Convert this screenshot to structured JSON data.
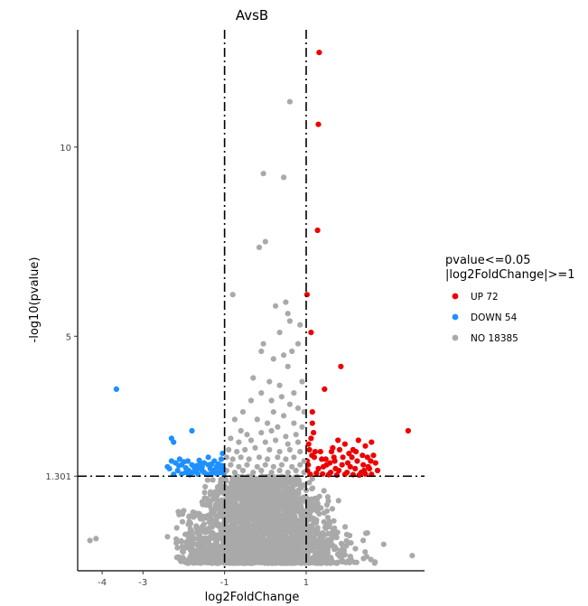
{
  "chart_data": {
    "type": "scatter",
    "title": "AvsB",
    "xlabel": "log2FoldChange",
    "ylabel": "-log10(pvalue)",
    "xlim": [
      -4.6,
      3.9
    ],
    "ylim": [
      -1.2,
      13.1
    ],
    "x_ticks": [
      -4,
      -3,
      -1,
      1
    ],
    "x_tick_labels": [
      "-4",
      "-3",
      "-1",
      "1"
    ],
    "y_ticks": [
      1.301,
      5,
      10
    ],
    "y_tick_labels": [
      "1.301",
      "5",
      "10"
    ],
    "thresholds": {
      "x": [
        -1,
        1
      ],
      "y": 1.301
    },
    "legend": {
      "title_line1": "pvalue<=0.05",
      "title_line2": "|log2FoldChange|>=1",
      "position": "right"
    },
    "series": [
      {
        "name": "UP 72",
        "color": "#ee0000",
        "points": [
          [
            1.32,
            12.5
          ],
          [
            1.3,
            10.6
          ],
          [
            1.28,
            7.8
          ],
          [
            1.02,
            6.1
          ],
          [
            1.12,
            5.1
          ],
          [
            1.85,
            4.2
          ],
          [
            1.45,
            3.6
          ],
          [
            1.15,
            3.0
          ],
          [
            1.15,
            2.7
          ],
          [
            1.12,
            2.3
          ],
          [
            1.08,
            2.0
          ],
          [
            1.2,
            1.8
          ],
          [
            1.05,
            1.6
          ],
          [
            1.3,
            1.5
          ],
          [
            1.5,
            1.6
          ],
          [
            1.7,
            1.7
          ],
          [
            1.9,
            1.8
          ],
          [
            2.05,
            1.9
          ],
          [
            2.25,
            1.7
          ],
          [
            2.4,
            1.6
          ],
          [
            2.5,
            1.8
          ],
          [
            1.6,
            1.4
          ],
          [
            1.8,
            1.45
          ],
          [
            2.0,
            1.4
          ],
          [
            2.2,
            1.5
          ],
          [
            2.35,
            1.4
          ],
          [
            2.55,
            1.5
          ],
          [
            1.1,
            1.35
          ],
          [
            1.25,
            1.38
          ],
          [
            1.4,
            1.36
          ],
          [
            1.55,
            1.34
          ],
          [
            1.75,
            1.33
          ],
          [
            1.95,
            1.35
          ],
          [
            2.15,
            1.34
          ],
          [
            2.3,
            1.33
          ],
          [
            2.45,
            1.36
          ],
          [
            2.6,
            1.35
          ],
          [
            1.35,
            1.95
          ],
          [
            1.65,
            2.05
          ],
          [
            1.95,
            2.15
          ],
          [
            2.15,
            2.0
          ],
          [
            2.45,
            2.1
          ],
          [
            2.6,
            2.2
          ],
          [
            2.7,
            1.65
          ],
          [
            2.75,
            1.45
          ],
          [
            3.5,
            2.5
          ],
          [
            1.02,
            1.7
          ],
          [
            1.06,
            2.15
          ],
          [
            1.18,
            2.45
          ],
          [
            1.22,
            1.95
          ],
          [
            1.48,
            1.75
          ],
          [
            1.62,
            1.95
          ],
          [
            1.78,
            2.25
          ],
          [
            1.88,
            1.6
          ],
          [
            2.08,
            1.55
          ],
          [
            2.28,
            2.25
          ],
          [
            2.38,
            1.85
          ],
          [
            2.52,
            1.55
          ],
          [
            2.65,
            1.85
          ],
          [
            1.03,
            1.45
          ],
          [
            1.14,
            1.85
          ],
          [
            1.42,
            1.55
          ],
          [
            1.58,
            1.65
          ],
          [
            1.72,
            1.5
          ],
          [
            1.82,
            2.0
          ],
          [
            2.02,
            1.65
          ],
          [
            2.12,
            1.8
          ],
          [
            2.22,
            1.95
          ],
          [
            2.42,
            1.45
          ],
          [
            2.58,
            1.7
          ],
          [
            1.38,
            1.75
          ],
          [
            1.68,
            1.8
          ]
        ]
      },
      {
        "name": "DOWN 54",
        "color": "#1e90ff",
        "points": [
          [
            -3.65,
            3.6
          ],
          [
            -1.8,
            2.5
          ],
          [
            -2.3,
            2.3
          ],
          [
            -2.25,
            2.2
          ],
          [
            -1.4,
            1.8
          ],
          [
            -1.05,
            1.9
          ],
          [
            -2.3,
            1.7
          ],
          [
            -2.2,
            1.65
          ],
          [
            -2.05,
            1.6
          ],
          [
            -1.9,
            1.7
          ],
          [
            -1.75,
            1.55
          ],
          [
            -1.6,
            1.5
          ],
          [
            -2.4,
            1.55
          ],
          [
            -2.35,
            1.5
          ],
          [
            -2.15,
            1.45
          ],
          [
            -1.95,
            1.4
          ],
          [
            -1.7,
            1.42
          ],
          [
            -1.55,
            1.45
          ],
          [
            -1.35,
            1.5
          ],
          [
            -1.2,
            1.55
          ],
          [
            -1.1,
            1.4
          ],
          [
            -1.3,
            1.38
          ],
          [
            -1.45,
            1.36
          ],
          [
            -1.65,
            1.35
          ],
          [
            -1.85,
            1.34
          ],
          [
            -2.05,
            1.36
          ],
          [
            -1.25,
            1.7
          ],
          [
            -1.15,
            1.62
          ],
          [
            -1.5,
            1.65
          ],
          [
            -2.1,
            1.75
          ],
          [
            -1.8,
            1.6
          ],
          [
            -1.6,
            1.62
          ],
          [
            -1.4,
            1.6
          ],
          [
            -1.02,
            1.48
          ],
          [
            -1.08,
            1.75
          ],
          [
            -2.25,
            1.35
          ],
          [
            -1.95,
            1.52
          ],
          [
            -1.72,
            1.48
          ],
          [
            -1.5,
            1.4
          ],
          [
            -1.28,
            1.45
          ],
          [
            -1.12,
            1.52
          ],
          [
            -1.02,
            1.38
          ],
          [
            -1.88,
            1.45
          ],
          [
            -2.0,
            1.68
          ],
          [
            -1.62,
            1.72
          ],
          [
            -1.38,
            1.35
          ],
          [
            -1.18,
            1.36
          ],
          [
            -1.06,
            1.58
          ],
          [
            -1.55,
            1.55
          ],
          [
            -1.78,
            1.4
          ],
          [
            -2.12,
            1.58
          ],
          [
            -1.32,
            1.62
          ],
          [
            -1.22,
            1.42
          ],
          [
            -1.68,
            1.58
          ]
        ]
      },
      {
        "name": "NO 18385",
        "color": "#a9a9a9",
        "points": [
          [
            0.6,
            11.2
          ],
          [
            -0.05,
            9.3
          ],
          [
            0.45,
            9.2
          ],
          [
            0.0,
            7.5
          ],
          [
            -0.15,
            7.35
          ],
          [
            -0.8,
            6.1
          ],
          [
            0.5,
            5.9
          ],
          [
            0.25,
            5.8
          ],
          [
            0.55,
            5.6
          ],
          [
            0.6,
            5.4
          ],
          [
            0.35,
            5.1
          ],
          [
            0.85,
            5.3
          ],
          [
            -0.05,
            4.8
          ],
          [
            0.65,
            4.6
          ],
          [
            0.8,
            4.8
          ],
          [
            -0.1,
            4.6
          ],
          [
            0.2,
            4.4
          ],
          [
            0.45,
            4.5
          ],
          [
            0.55,
            4.2
          ],
          [
            0.7,
            3.5
          ],
          [
            0.9,
            3.8
          ],
          [
            -0.3,
            3.9
          ],
          [
            0.1,
            3.8
          ],
          [
            0.35,
            3.7
          ],
          [
            -0.1,
            3.5
          ],
          [
            0.15,
            3.3
          ],
          [
            0.4,
            3.4
          ],
          [
            -0.35,
            3.3
          ],
          [
            0.6,
            3.2
          ],
          [
            0.8,
            3.1
          ],
          [
            -0.55,
            3.0
          ],
          [
            0.2,
            3.0
          ],
          [
            0.45,
            2.9
          ],
          [
            0.95,
            3.0
          ],
          [
            -0.75,
            2.8
          ],
          [
            -0.2,
            2.8
          ],
          [
            0.05,
            2.7
          ],
          [
            0.3,
            2.6
          ],
          [
            0.7,
            2.7
          ],
          [
            0.9,
            2.6
          ],
          [
            -0.6,
            2.5
          ],
          [
            -0.45,
            2.4
          ],
          [
            -0.1,
            2.45
          ],
          [
            0.15,
            2.5
          ],
          [
            0.5,
            2.35
          ],
          [
            0.75,
            2.4
          ],
          [
            -0.85,
            2.3
          ],
          [
            -0.65,
            2.2
          ],
          [
            -0.35,
            2.25
          ],
          [
            0.0,
            2.2
          ],
          [
            0.25,
            2.25
          ],
          [
            0.55,
            2.15
          ],
          [
            0.8,
            2.2
          ],
          [
            -0.9,
            2.0
          ],
          [
            -0.7,
            1.95
          ],
          [
            -0.5,
            2.0
          ],
          [
            -0.25,
            2.05
          ],
          [
            0.1,
            2.0
          ],
          [
            0.35,
            1.95
          ],
          [
            0.6,
            2.0
          ],
          [
            0.85,
            1.95
          ],
          [
            -0.95,
            1.8
          ],
          [
            -0.8,
            1.75
          ],
          [
            -0.6,
            1.8
          ],
          [
            -0.4,
            1.75
          ],
          [
            -0.15,
            1.8
          ],
          [
            0.05,
            1.75
          ],
          [
            0.3,
            1.8
          ],
          [
            0.5,
            1.75
          ],
          [
            0.7,
            1.8
          ],
          [
            0.95,
            1.7
          ],
          [
            -0.85,
            1.6
          ],
          [
            -0.65,
            1.55
          ],
          [
            -0.45,
            1.6
          ],
          [
            -0.2,
            1.55
          ],
          [
            0.0,
            1.6
          ],
          [
            0.2,
            1.55
          ],
          [
            0.4,
            1.6
          ],
          [
            0.65,
            1.55
          ],
          [
            0.85,
            1.6
          ],
          [
            -0.95,
            1.45
          ],
          [
            -0.75,
            1.4
          ],
          [
            -0.55,
            1.45
          ],
          [
            -0.3,
            1.4
          ],
          [
            -0.1,
            1.45
          ],
          [
            0.15,
            1.4
          ],
          [
            0.35,
            1.45
          ],
          [
            0.55,
            1.4
          ],
          [
            0.75,
            1.45
          ],
          [
            0.95,
            1.4
          ],
          [
            -4.3,
            -0.4
          ],
          [
            -4.15,
            -0.35
          ],
          [
            3.6,
            -0.8
          ],
          [
            -2.1,
            -0.85
          ],
          [
            -1.6,
            -0.9
          ],
          [
            2.1,
            -0.9
          ],
          [
            2.9,
            -0.5
          ],
          [
            -2.4,
            -0.3
          ],
          [
            -1.9,
            -0.5
          ],
          [
            2.5,
            -0.2
          ]
        ],
        "cloud": {
          "description_x_range": [
            -2.1,
            2.7
          ],
          "description_y_range": [
            -1.0,
            1.3
          ]
        }
      }
    ]
  }
}
